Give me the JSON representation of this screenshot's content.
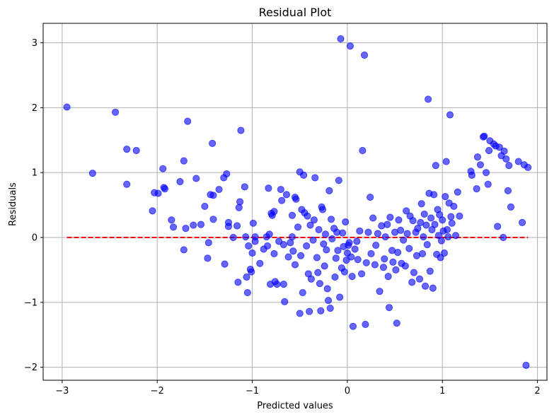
{
  "chart_data": {
    "type": "scatter",
    "title": "Residual Plot",
    "xlabel": "Predicted values",
    "ylabel": "Residuals",
    "xlim": [
      -3.2,
      2.1
    ],
    "ylim": [
      -2.2,
      3.3
    ],
    "grid": true,
    "x_ticks": [
      -3,
      -2,
      -1,
      0,
      1,
      2
    ],
    "y_ticks": [
      -2,
      -1,
      0,
      1,
      2,
      3
    ],
    "x_tick_labels": [
      "−3",
      "−2",
      "−1",
      "0",
      "1",
      "2"
    ],
    "y_tick_labels": [
      "−2",
      "−1",
      "0",
      "1",
      "2",
      "3"
    ],
    "reference_line": {
      "y": 0,
      "x_start": -2.95,
      "x_end": 1.9,
      "color": "#ff0000",
      "style": "dashed"
    },
    "marker_color": "#0000ff",
    "series": [
      {
        "name": "residuals",
        "points": [
          [
            -2.95,
            2.01
          ],
          [
            -2.68,
            0.99
          ],
          [
            -2.44,
            1.93
          ],
          [
            -2.32,
            1.36
          ],
          [
            -2.32,
            0.82
          ],
          [
            -2.22,
            1.34
          ],
          [
            -2.05,
            0.41
          ],
          [
            -2.03,
            0.69
          ],
          [
            -1.99,
            0.68
          ],
          [
            -1.94,
            1.06
          ],
          [
            -1.93,
            0.77
          ],
          [
            -1.92,
            0.75
          ],
          [
            -1.85,
            0.27
          ],
          [
            -1.83,
            0.16
          ],
          [
            -1.76,
            0.86
          ],
          [
            -1.72,
            1.18
          ],
          [
            -1.72,
            -0.19
          ],
          [
            -1.7,
            0.14
          ],
          [
            -1.68,
            1.79
          ],
          [
            -1.62,
            0.19
          ],
          [
            -1.59,
            0.91
          ],
          [
            -1.54,
            0.2
          ],
          [
            -1.5,
            0.48
          ],
          [
            -1.47,
            -0.32
          ],
          [
            -1.46,
            -0.08
          ],
          [
            -1.44,
            0.66
          ],
          [
            -1.42,
            1.45
          ],
          [
            -1.41,
            0.65
          ],
          [
            -1.41,
            0.28
          ],
          [
            -1.35,
            0.74
          ],
          [
            -1.3,
            0.92
          ],
          [
            -1.29,
            -0.41
          ],
          [
            -1.27,
            0.98
          ],
          [
            -1.25,
            0.17
          ],
          [
            -1.25,
            0.23
          ],
          [
            -1.2,
            0.0
          ],
          [
            -1.16,
            0.18
          ],
          [
            -1.15,
            -0.69
          ],
          [
            -1.14,
            0.46
          ],
          [
            -1.13,
            0.55
          ],
          [
            -1.12,
            1.65
          ],
          [
            -1.08,
            0.78
          ],
          [
            -1.07,
            0.01
          ],
          [
            -1.06,
            -0.61
          ],
          [
            -1.05,
            -0.85
          ],
          [
            -1.04,
            -0.13
          ],
          [
            -1.02,
            -0.49
          ],
          [
            -1.01,
            -0.53
          ],
          [
            -1.0,
            -0.24
          ],
          [
            -0.99,
            0.22
          ],
          [
            -0.97,
            0.01
          ],
          [
            -0.97,
            -0.06
          ],
          [
            -0.92,
            -0.4
          ],
          [
            -0.88,
            -0.18
          ],
          [
            -0.85,
            0.01
          ],
          [
            -0.84,
            -0.13
          ],
          [
            -0.83,
            0.76
          ],
          [
            -0.82,
            0.05
          ],
          [
            -0.81,
            -0.72
          ],
          [
            -0.8,
            0.37
          ],
          [
            -0.79,
            0.34
          ],
          [
            -0.77,
            -0.25
          ],
          [
            -0.77,
            0.4
          ],
          [
            -0.76,
            -0.68
          ],
          [
            -0.74,
            -0.72
          ],
          [
            -0.72,
            -0.06
          ],
          [
            -0.7,
            0.74
          ],
          [
            -0.69,
            0.57
          ],
          [
            -0.67,
            -0.11
          ],
          [
            -0.67,
            -0.72
          ],
          [
            -0.66,
            -0.99
          ],
          [
            -0.64,
            0.66
          ],
          [
            -0.62,
            -0.3
          ],
          [
            -0.6,
            -0.08
          ],
          [
            -0.58,
            0.34
          ],
          [
            -0.58,
            0.01
          ],
          [
            -0.57,
            -0.21
          ],
          [
            -0.55,
            0.62
          ],
          [
            -0.55,
            -0.42
          ],
          [
            -0.54,
            0.59
          ],
          [
            -0.52,
            0.16
          ],
          [
            -0.5,
            1.01
          ],
          [
            -0.5,
            -1.17
          ],
          [
            -0.49,
            -0.28
          ],
          [
            -0.48,
            0.43
          ],
          [
            -0.47,
            -0.85
          ],
          [
            -0.46,
            0.96
          ],
          [
            -0.45,
            0.38
          ],
          [
            -0.43,
            -0.13
          ],
          [
            -0.42,
            0.33
          ],
          [
            -0.41,
            -0.56
          ],
          [
            -0.4,
            -1.14
          ],
          [
            -0.39,
            0.19
          ],
          [
            -0.38,
            -0.64
          ],
          [
            -0.36,
            -0.04
          ],
          [
            -0.35,
            0.27
          ],
          [
            -0.34,
            0.92
          ],
          [
            -0.32,
            -0.31
          ],
          [
            -0.31,
            -0.54
          ],
          [
            -0.3,
            0.12
          ],
          [
            -0.29,
            -0.71
          ],
          [
            -0.28,
            -1.13
          ],
          [
            -0.27,
            0.47
          ],
          [
            -0.26,
            0.43
          ],
          [
            -0.25,
            -0.1
          ],
          [
            -0.24,
            -0.44
          ],
          [
            -0.23,
            0.05
          ],
          [
            -0.22,
            -0.19
          ],
          [
            -0.21,
            -0.79
          ],
          [
            -0.2,
            -0.97
          ],
          [
            -0.19,
            0.72
          ],
          [
            -0.18,
            -1.09
          ],
          [
            -0.17,
            0.28
          ],
          [
            -0.16,
            -0.02
          ],
          [
            -0.14,
            0.14
          ],
          [
            -0.13,
            -0.61
          ],
          [
            -0.12,
            -0.32
          ],
          [
            -0.11,
            0.08
          ],
          [
            -0.1,
            -0.2
          ],
          [
            -0.09,
            0.88
          ],
          [
            -0.08,
            -0.92
          ],
          [
            -0.07,
            3.06
          ],
          [
            -0.06,
            -0.47
          ],
          [
            -0.05,
            0.07
          ],
          [
            -0.04,
            -0.14
          ],
          [
            -0.03,
            -0.53
          ],
          [
            -0.02,
            0.24
          ],
          [
            -0.01,
            -0.35
          ],
          [
            0.0,
            -0.24
          ],
          [
            0.01,
            -0.12
          ],
          [
            0.02,
            -0.08
          ],
          [
            0.03,
            2.95
          ],
          [
            0.04,
            -0.3
          ],
          [
            0.05,
            -0.6
          ],
          [
            0.06,
            -1.37
          ],
          [
            0.08,
            -0.18
          ],
          [
            0.1,
            -0.06
          ],
          [
            0.11,
            -0.34
          ],
          [
            0.13,
            0.1
          ],
          [
            0.15,
            -0.56
          ],
          [
            0.16,
            1.34
          ],
          [
            0.18,
            2.81
          ],
          [
            0.19,
            -1.34
          ],
          [
            0.2,
            -0.39
          ],
          [
            0.22,
            0.08
          ],
          [
            0.24,
            0.62
          ],
          [
            0.25,
            -0.25
          ],
          [
            0.27,
            0.3
          ],
          [
            0.29,
            -0.42
          ],
          [
            0.3,
            -0.12
          ],
          [
            0.32,
            0.06
          ],
          [
            0.34,
            -0.83
          ],
          [
            0.36,
            0.18
          ],
          [
            0.38,
            -0.46
          ],
          [
            0.39,
            -0.33
          ],
          [
            0.4,
            0.01
          ],
          [
            0.42,
            0.2
          ],
          [
            0.43,
            -0.6
          ],
          [
            0.44,
            -1.08
          ],
          [
            0.45,
            0.31
          ],
          [
            0.47,
            -0.2
          ],
          [
            0.48,
            -0.38
          ],
          [
            0.5,
            0.08
          ],
          [
            0.51,
            -0.5
          ],
          [
            0.52,
            -1.32
          ],
          [
            0.53,
            -0.23
          ],
          [
            0.54,
            0.27
          ],
          [
            0.56,
            0.11
          ],
          [
            0.57,
            -0.4
          ],
          [
            0.59,
            -0.04
          ],
          [
            0.61,
            -0.44
          ],
          [
            0.62,
            0.41
          ],
          [
            0.63,
            0.06
          ],
          [
            0.65,
            -0.17
          ],
          [
            0.66,
            0.33
          ],
          [
            0.68,
            -0.69
          ],
          [
            0.69,
            0.26
          ],
          [
            0.7,
            -0.54
          ],
          [
            0.72,
            0.08
          ],
          [
            0.73,
            -0.28
          ],
          [
            0.74,
            0.14
          ],
          [
            0.76,
            -0.64
          ],
          [
            0.77,
            0.23
          ],
          [
            0.78,
            0.52
          ],
          [
            0.79,
            -0.25
          ],
          [
            0.8,
            0.01
          ],
          [
            0.81,
            0.36
          ],
          [
            0.82,
            -0.75
          ],
          [
            0.83,
            0.19
          ],
          [
            0.84,
            -0.11
          ],
          [
            0.85,
            2.13
          ],
          [
            0.86,
            0.68
          ],
          [
            0.87,
            -0.52
          ],
          [
            0.88,
            0.3
          ],
          [
            0.89,
            0.12
          ],
          [
            0.9,
            -0.78
          ],
          [
            0.91,
            0.66
          ],
          [
            0.92,
            0.2
          ],
          [
            0.93,
            1.11
          ],
          [
            0.94,
            -0.26
          ],
          [
            0.95,
            0.43
          ],
          [
            0.96,
            0.03
          ],
          [
            0.97,
            0.35
          ],
          [
            0.98,
            -0.31
          ],
          [
            0.99,
            -0.05
          ],
          [
            1.0,
            0.27
          ],
          [
            1.01,
            0.1
          ],
          [
            1.02,
            -0.24
          ],
          [
            1.03,
            0.63
          ],
          [
            1.04,
            1.17
          ],
          [
            1.05,
            0.12
          ],
          [
            1.06,
            0.01
          ],
          [
            1.07,
            0.53
          ],
          [
            1.08,
            1.89
          ],
          [
            1.09,
            0.32
          ],
          [
            1.1,
            0.22
          ],
          [
            1.12,
            0.48
          ],
          [
            1.14,
            0.03
          ],
          [
            1.16,
            0.7
          ],
          [
            1.18,
            0.33
          ],
          [
            1.3,
            1.02
          ],
          [
            1.31,
            0.96
          ],
          [
            1.36,
            0.75
          ],
          [
            1.37,
            1.24
          ],
          [
            1.4,
            1.12
          ],
          [
            1.43,
            1.55
          ],
          [
            1.44,
            1.56
          ],
          [
            1.46,
            1.0
          ],
          [
            1.48,
            0.82
          ],
          [
            1.49,
            1.34
          ],
          [
            1.5,
            1.49
          ],
          [
            1.54,
            1.44
          ],
          [
            1.56,
            1.41
          ],
          [
            1.58,
            0.17
          ],
          [
            1.6,
            1.39
          ],
          [
            1.62,
            1.26
          ],
          [
            1.64,
            0.0
          ],
          [
            1.65,
            1.33
          ],
          [
            1.67,
            1.21
          ],
          [
            1.69,
            0.72
          ],
          [
            1.7,
            1.11
          ],
          [
            1.72,
            0.47
          ],
          [
            1.8,
            1.17
          ],
          [
            1.84,
            0.23
          ],
          [
            1.86,
            1.12
          ],
          [
            1.88,
            -1.97
          ],
          [
            1.9,
            1.08
          ]
        ]
      }
    ]
  }
}
